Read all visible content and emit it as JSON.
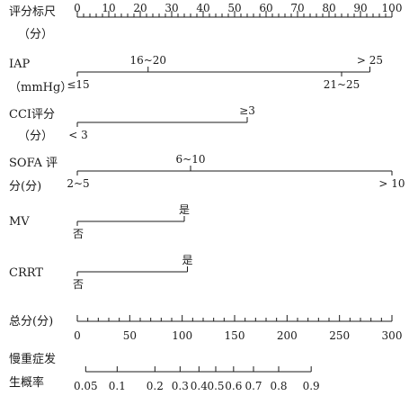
{
  "chart_data": {
    "type": "nomogram",
    "rows": [
      {
        "key": "points",
        "label_lines": [
          "评分标尺",
          "（分）"
        ],
        "min": 0,
        "max": 100,
        "minor_step": 2,
        "labels": [
          "0",
          "10",
          "20",
          "30",
          "40",
          "50",
          "60",
          "70",
          "80",
          "90",
          "100"
        ],
        "label_values": [
          0,
          10,
          20,
          30,
          40,
          50,
          60,
          70,
          80,
          90,
          100
        ]
      },
      {
        "key": "iap",
        "label_lines": [
          "IAP",
          "（mmHg）"
        ],
        "points_range": [
          0,
          93
        ],
        "levels": [
          {
            "label": "≤15",
            "points": 0,
            "position": "below"
          },
          {
            "label": "16~20",
            "points": 22.5,
            "position": "above"
          },
          {
            "label": "21~25",
            "points": 84,
            "position": "below"
          },
          {
            "label": "> 25",
            "points": 93,
            "position": "above"
          }
        ]
      },
      {
        "key": "cci",
        "label_lines": [
          "CCI评分",
          "（分）"
        ],
        "points_range": [
          0,
          54
        ],
        "levels": [
          {
            "label": "< 3",
            "points": 0,
            "position": "below"
          },
          {
            "label": "≥3",
            "points": 54,
            "position": "above"
          }
        ]
      },
      {
        "key": "sofa",
        "label_lines": [
          "SOFA 评",
          "分(分)"
        ],
        "points_range": [
          0,
          100
        ],
        "levels": [
          {
            "label": "2~5",
            "points": 0,
            "position": "below"
          },
          {
            "label": "6~10",
            "points": 36,
            "position": "above"
          },
          {
            "label": "> 10",
            "points": 100,
            "position": "below"
          }
        ]
      },
      {
        "key": "mv",
        "label_lines": [
          "MV"
        ],
        "points_range": [
          0,
          34
        ],
        "levels": [
          {
            "label": "否",
            "points": 0,
            "position": "below"
          },
          {
            "label": "是",
            "points": 34,
            "position": "above"
          }
        ]
      },
      {
        "key": "crrt",
        "label_lines": [
          "CRRT"
        ],
        "points_range": [
          0,
          35
        ],
        "levels": [
          {
            "label": "否",
            "points": 0,
            "position": "below"
          },
          {
            "label": "是",
            "points": 35,
            "position": "above"
          }
        ]
      },
      {
        "key": "total",
        "label_lines": [
          "总分(分)"
        ],
        "min": 0,
        "max": 300,
        "minor_step": 10,
        "labels": [
          "0",
          "50",
          "100",
          "150",
          "200",
          "250",
          "300"
        ],
        "label_values": [
          0,
          50,
          100,
          150,
          200,
          250,
          300
        ]
      },
      {
        "key": "prob",
        "label_lines": [
          "慢重症发",
          "生概率"
        ],
        "probabilities": [
          0.05,
          0.1,
          0.2,
          0.3,
          0.4,
          0.5,
          0.6,
          0.7,
          0.8,
          0.9
        ],
        "labels": [
          "0.05",
          "0.1",
          "0.2",
          "0.3",
          "0.4",
          "0.5",
          "0.6",
          "0.7",
          "0.8",
          "0.9"
        ],
        "total_points_at": [
          8,
          38,
          74,
          98,
          116,
          132,
          149,
          168,
          192,
          223
        ]
      }
    ]
  }
}
